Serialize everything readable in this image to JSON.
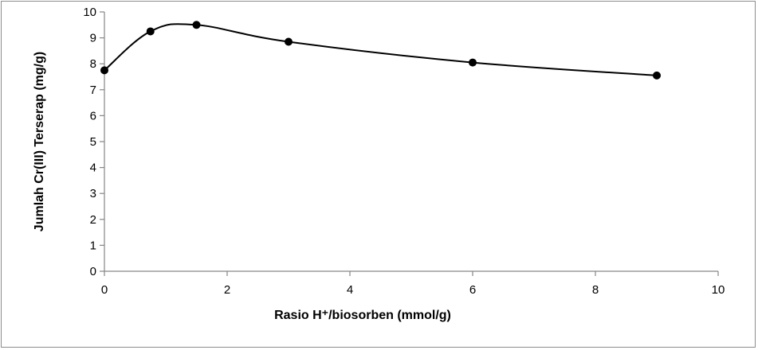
{
  "chart_data": {
    "type": "line",
    "xlabel": "Rasio H⁺/biosorben (mmol/g)",
    "ylabel": "Jumlah Cr(III) Terserap (mg/g)",
    "xlim": [
      0,
      10
    ],
    "ylim": [
      0,
      10
    ],
    "x_ticks": [
      "0",
      "2",
      "4",
      "6",
      "8",
      "10"
    ],
    "y_ticks": [
      "0",
      "1",
      "2",
      "3",
      "4",
      "5",
      "6",
      "7",
      "8",
      "9",
      "10"
    ],
    "grid": false,
    "legend": "none",
    "line_color": "#000000",
    "series": [
      {
        "x": [
          0,
          0.75,
          1.5,
          3,
          6,
          9
        ],
        "y": [
          7.75,
          9.25,
          9.5,
          8.85,
          8.05,
          7.55
        ]
      }
    ]
  }
}
